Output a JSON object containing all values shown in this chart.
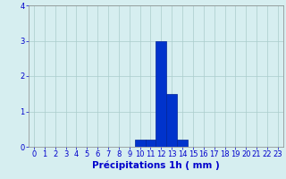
{
  "hours": [
    0,
    1,
    2,
    3,
    4,
    5,
    6,
    7,
    8,
    9,
    10,
    11,
    12,
    13,
    14,
    15,
    16,
    17,
    18,
    19,
    20,
    21,
    22,
    23
  ],
  "values": [
    0,
    0,
    0,
    0,
    0,
    0,
    0,
    0,
    0,
    0,
    0.2,
    0.2,
    3.0,
    1.5,
    0.2,
    0,
    0,
    0,
    0,
    0,
    0,
    0,
    0,
    0
  ],
  "bar_color": "#0033cc",
  "bar_edge_color": "#002299",
  "background_color": "#d6eef0",
  "grid_color": "#aacccc",
  "xlabel": "Précipitations 1h ( mm )",
  "xlabel_color": "#0000cc",
  "tick_color": "#0000cc",
  "ylim": [
    0,
    4
  ],
  "yticks": [
    0,
    1,
    2,
    3,
    4
  ],
  "xlim": [
    -0.5,
    23.5
  ],
  "tick_fontsize": 6.0,
  "xlabel_fontsize": 7.5
}
